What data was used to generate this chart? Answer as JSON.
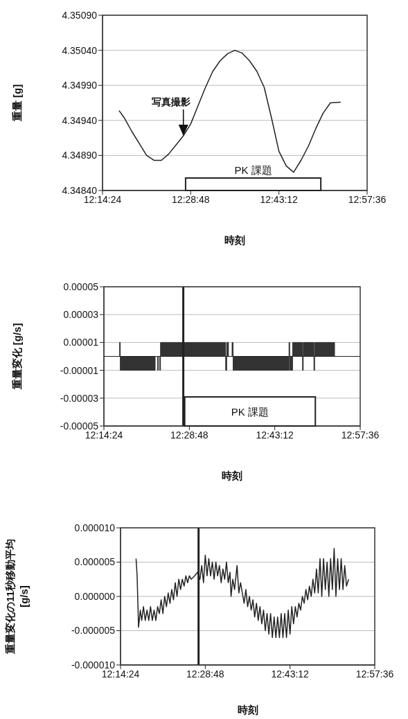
{
  "chart_data": [
    {
      "type": "line",
      "xlabel": "時刻",
      "ylabel": "重量 [g]",
      "color": "#222222",
      "x": [
        12.285,
        12.3,
        12.32,
        12.34,
        12.36,
        12.38,
        12.4,
        12.42,
        12.44,
        12.46,
        12.48,
        12.5,
        12.52,
        12.54,
        12.56,
        12.58,
        12.6,
        12.62,
        12.64,
        12.66,
        12.68,
        12.7,
        12.72,
        12.74,
        12.76,
        12.78,
        12.8,
        12.82,
        12.84,
        12.86,
        12.888
      ],
      "values": [
        4.34954,
        4.34943,
        4.34924,
        4.34907,
        4.3489,
        4.34883,
        4.34883,
        4.34892,
        4.34905,
        4.34918,
        4.34935,
        4.34961,
        4.34987,
        4.3501,
        4.35025,
        4.35035,
        4.3504,
        4.35036,
        4.35025,
        4.3501,
        4.34987,
        4.34943,
        4.34896,
        4.34875,
        4.34866,
        4.34883,
        4.34903,
        4.34928,
        4.3495,
        4.34965,
        4.34966
      ],
      "xlim": [
        12.24,
        12.96
      ],
      "xticks": [
        {
          "value": 12.24,
          "label": "12:14:24"
        },
        {
          "value": 12.48,
          "label": "12:28:48"
        },
        {
          "value": 12.72,
          "label": "12:43:12"
        },
        {
          "value": 12.96,
          "label": "12:57:36"
        }
      ],
      "ylim": [
        4.3484,
        4.3509
      ],
      "yticks": [
        {
          "value": 4.3484,
          "label": "4.34840"
        },
        {
          "value": 4.3489,
          "label": "4.34890"
        },
        {
          "value": 4.3494,
          "label": "4.34940"
        },
        {
          "value": 4.3499,
          "label": "4.34990"
        },
        {
          "value": 4.3504,
          "label": "4.35040"
        },
        {
          "value": 4.3509,
          "label": "4.35090"
        }
      ],
      "grid": "y",
      "annotations": [
        {
          "text": "写真撮影",
          "x": 12.46,
          "y": 4.34918
        }
      ],
      "bands": [
        {
          "axis": "x",
          "from": 12.466,
          "to": 12.834,
          "label": "PK 課題"
        }
      ]
    },
    {
      "type": "step",
      "xlabel": "時刻",
      "ylabel": "重量変化 [g/s]",
      "color": "#333333",
      "x": [
        12.283,
        12.286,
        12.384,
        12.391,
        12.393,
        12.397,
        12.399,
        12.582,
        12.585,
        12.59,
        12.6,
        12.603,
        12.76,
        12.762,
        12.77,
        12.798,
        12.8,
        12.83,
        12.832,
        12.888
      ],
      "values": [
        1e-05,
        -1e-05,
        0,
        -1e-05,
        0,
        -1e-05,
        1e-05,
        -1e-05,
        1e-05,
        0,
        1e-05,
        -1e-05,
        1e-05,
        -1e-05,
        1e-05,
        -1e-05,
        1e-05,
        -1e-05,
        1e-05,
        0
      ],
      "xlim": [
        12.24,
        12.96
      ],
      "xticks": [
        {
          "value": 12.24,
          "label": "12:14:24"
        },
        {
          "value": 12.48,
          "label": "12:28:48"
        },
        {
          "value": 12.72,
          "label": "12:43:12"
        },
        {
          "value": 12.96,
          "label": "12:57:36"
        }
      ],
      "ylim": [
        -5e-05,
        5e-05
      ],
      "yticks": [
        {
          "value": -5e-05,
          "label": "-0.00005"
        },
        {
          "value": -3e-05,
          "label": "-0.00003"
        },
        {
          "value": -1e-05,
          "label": "-0.00001"
        },
        {
          "value": 1e-05,
          "label": "0.00001"
        },
        {
          "value": 3e-05,
          "label": "0.00003"
        },
        {
          "value": 5e-05,
          "label": "0.00005"
        }
      ],
      "grid": "y",
      "ref_lines": [
        {
          "axis": "x",
          "value": 12.463
        },
        {
          "axis": "y",
          "value": 0
        }
      ],
      "bands": [
        {
          "axis": "x",
          "from": 12.467,
          "to": 12.834,
          "label": "PK 課題"
        }
      ]
    },
    {
      "type": "line",
      "xlabel": "時刻",
      "ylabel": "重量変化の11秒移動平均\n[g/s]",
      "color": "#222222",
      "x": [
        12.284,
        12.287,
        12.291,
        12.296,
        12.3,
        12.305,
        12.31,
        12.315,
        12.32,
        12.325,
        12.33,
        12.335,
        12.34,
        12.345,
        12.35,
        12.355,
        12.36,
        12.365,
        12.37,
        12.375,
        12.38,
        12.385,
        12.39,
        12.395,
        12.4,
        12.405,
        12.41,
        12.415,
        12.42,
        12.425,
        12.43,
        12.435,
        12.44,
        12.45,
        12.458,
        12.465,
        12.47,
        12.475,
        12.48,
        12.485,
        12.49,
        12.495,
        12.5,
        12.505,
        12.51,
        12.515,
        12.52,
        12.525,
        12.53,
        12.535,
        12.54,
        12.545,
        12.55,
        12.553,
        12.558,
        12.563,
        12.57,
        12.575,
        12.58,
        12.585,
        12.59,
        12.595,
        12.6,
        12.605,
        12.61,
        12.615,
        12.62,
        12.625,
        12.63,
        12.635,
        12.64,
        12.645,
        12.65,
        12.655,
        12.66,
        12.665,
        12.67,
        12.675,
        12.68,
        12.685,
        12.69,
        12.695,
        12.7,
        12.705,
        12.71,
        12.715,
        12.72,
        12.725,
        12.73,
        12.735,
        12.74,
        12.745,
        12.75,
        12.755,
        12.76,
        12.765,
        12.77,
        12.775,
        12.78,
        12.785,
        12.79,
        12.795,
        12.8,
        12.805,
        12.81,
        12.815,
        12.82,
        12.825,
        12.83,
        12.835,
        12.84,
        12.845,
        12.85,
        12.855,
        12.86,
        12.865,
        12.87,
        12.875,
        12.88,
        12.886
      ],
      "values": [
        5.5e-06,
        3e-06,
        -4.5e-06,
        -2e-06,
        -3.5e-06,
        -1.5e-06,
        -3.5e-06,
        -2e-06,
        -3.5e-06,
        -1.5e-06,
        -3.5e-06,
        -2e-06,
        -3.5e-06,
        -1.5e-06,
        -2.5e-06,
        -5e-07,
        -2.5e-06,
        0,
        -1.5e-06,
        5e-07,
        -1e-06,
        1e-06,
        -5e-07,
        2e-06,
        0,
        2.5e-06,
        1e-06,
        2.5e-06,
        1.5e-06,
        3e-06,
        2e-06,
        3e-06,
        2.5e-06,
        3e-06,
        3.5e-06,
        2.5e-06,
        4.5e-06,
        2e-06,
        6e-06,
        3e-06,
        5.5e-06,
        3e-06,
        5e-06,
        2.5e-06,
        5e-06,
        3e-06,
        4.5e-06,
        2e-06,
        4e-06,
        2.5e-06,
        5e-06,
        2e-06,
        3.5e-06,
        0,
        2.5e-06,
        1e-06,
        4.5e-06,
        5e-07,
        2e-06,
        5e-07,
        -1e-06,
        1e-06,
        -1.5e-06,
        0,
        -2e-06,
        -5e-07,
        -3e-06,
        -1e-06,
        -3.5e-06,
        -1.5e-06,
        -4e-06,
        -2e-06,
        -5e-06,
        -2.5e-06,
        -5.5e-06,
        -2.5e-06,
        -6e-06,
        -3e-06,
        -6e-06,
        -3e-06,
        -6e-06,
        -2.5e-06,
        -6e-06,
        -2.5e-06,
        -6e-06,
        -2e-06,
        -5.5e-06,
        -1.5e-06,
        -4e-06,
        -1.5e-06,
        -3e-06,
        -1e-06,
        -2e-06,
        0,
        -1e-06,
        1e-06,
        -5e-07,
        1.5e-06,
        0,
        2.5e-06,
        5e-07,
        4e-06,
        5e-07,
        5.5e-06,
        0,
        5.5e-06,
        1e-06,
        5e-06,
        0,
        5.5e-06,
        1e-06,
        7e-06,
        0,
        5.5e-06,
        1e-06,
        5.5e-06,
        1e-06,
        4.5e-06,
        1.5e-06,
        2.5e-06
      ],
      "xlim": [
        12.24,
        12.96
      ],
      "xticks": [
        {
          "value": 12.24,
          "label": "12:14:24"
        },
        {
          "value": 12.48,
          "label": "12:28:48"
        },
        {
          "value": 12.72,
          "label": "12:43:12"
        },
        {
          "value": 12.96,
          "label": "12:57:36"
        }
      ],
      "ylim": [
        -1e-05,
        1e-05
      ],
      "yticks": [
        {
          "value": -1e-05,
          "label": "-0.000010"
        },
        {
          "value": -5e-06,
          "label": "-0.000005"
        },
        {
          "value": 0,
          "label": "0.000000"
        },
        {
          "value": 5e-06,
          "label": "0.000005"
        },
        {
          "value": 1e-05,
          "label": "0.000010"
        }
      ],
      "grid": "y",
      "ref_lines": [
        {
          "axis": "x",
          "value": 12.461
        }
      ]
    }
  ]
}
